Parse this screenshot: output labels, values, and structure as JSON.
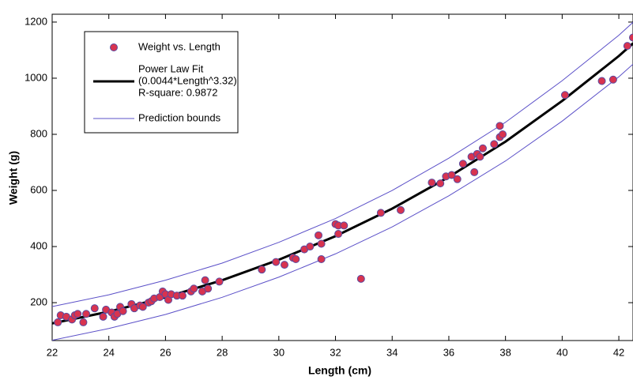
{
  "chart_data": {
    "type": "scatter",
    "xlabel": "Length (cm)",
    "ylabel": "Weight (g)",
    "xlim": [
      22,
      42.5
    ],
    "ylim": [
      65,
      1228
    ],
    "xticks": [
      22,
      24,
      26,
      28,
      30,
      32,
      34,
      36,
      38,
      40,
      42
    ],
    "yticks": [
      200,
      400,
      600,
      800,
      1000,
      1200
    ],
    "grid": false,
    "legend_position": "upper left",
    "series": [
      {
        "name": "Weight vs. Length",
        "color": "#d8334f",
        "edge_color": "#5a4aa0",
        "x": [
          22.2,
          22.3,
          22.5,
          22.7,
          22.8,
          22.9,
          23.1,
          23.2,
          23.5,
          23.8,
          23.9,
          24.1,
          24.2,
          24.3,
          24.4,
          24.5,
          24.8,
          24.9,
          25.1,
          25.2,
          25.4,
          25.5,
          25.6,
          25.8,
          25.9,
          26.0,
          26.1,
          26.2,
          26.4,
          26.6,
          26.9,
          27.0,
          27.3,
          27.4,
          27.5,
          27.9,
          29.4,
          29.9,
          30.2,
          30.5,
          30.6,
          30.9,
          31.1,
          31.4,
          31.5,
          31.5,
          32.0,
          32.1,
          32.1,
          32.3,
          32.9,
          33.6,
          34.3,
          35.4,
          35.7,
          35.9,
          36.1,
          36.3,
          36.5,
          36.8,
          36.9,
          37.0,
          37.1,
          37.2,
          37.6,
          37.8,
          37.8,
          37.9,
          40.1,
          41.4,
          41.8,
          42.3,
          42.5
        ],
        "values": [
          130,
          155,
          150,
          140,
          155,
          160,
          130,
          160,
          180,
          150,
          175,
          165,
          150,
          160,
          185,
          170,
          195,
          180,
          190,
          185,
          200,
          205,
          215,
          220,
          240,
          230,
          210,
          230,
          225,
          225,
          240,
          250,
          240,
          280,
          250,
          275,
          318,
          345,
          335,
          360,
          355,
          390,
          400,
          440,
          355,
          410,
          480,
          445,
          475,
          475,
          285,
          520,
          530,
          628,
          625,
          650,
          655,
          640,
          695,
          720,
          665,
          730,
          720,
          750,
          765,
          790,
          830,
          800,
          940,
          990,
          995,
          1115,
          1145
        ]
      },
      {
        "name": "Power Law Fit",
        "equation": "(0.0044*Length^3.32)",
        "r_square": "R-square: 0.9872",
        "color": "#000000",
        "x": [
          22,
          24,
          26,
          28,
          30,
          32,
          34,
          36,
          38,
          40,
          42,
          42.5
        ],
        "values": [
          126,
          168,
          219,
          280,
          353,
          437,
          535,
          648,
          774,
          919,
          1079,
          1124
        ]
      },
      {
        "name": "Prediction bounds",
        "color": "#5b50c8",
        "x": [
          22,
          24,
          26,
          28,
          30,
          32,
          34,
          36,
          38,
          40,
          42,
          42.5
        ],
        "upper": [
          186,
          228,
          280,
          341,
          415,
          500,
          600,
          715,
          843,
          991,
          1153,
          1199
        ],
        "lower": [
          66,
          108,
          158,
          219,
          291,
          374,
          470,
          581,
          705,
          847,
          1005,
          1050
        ]
      }
    ]
  }
}
